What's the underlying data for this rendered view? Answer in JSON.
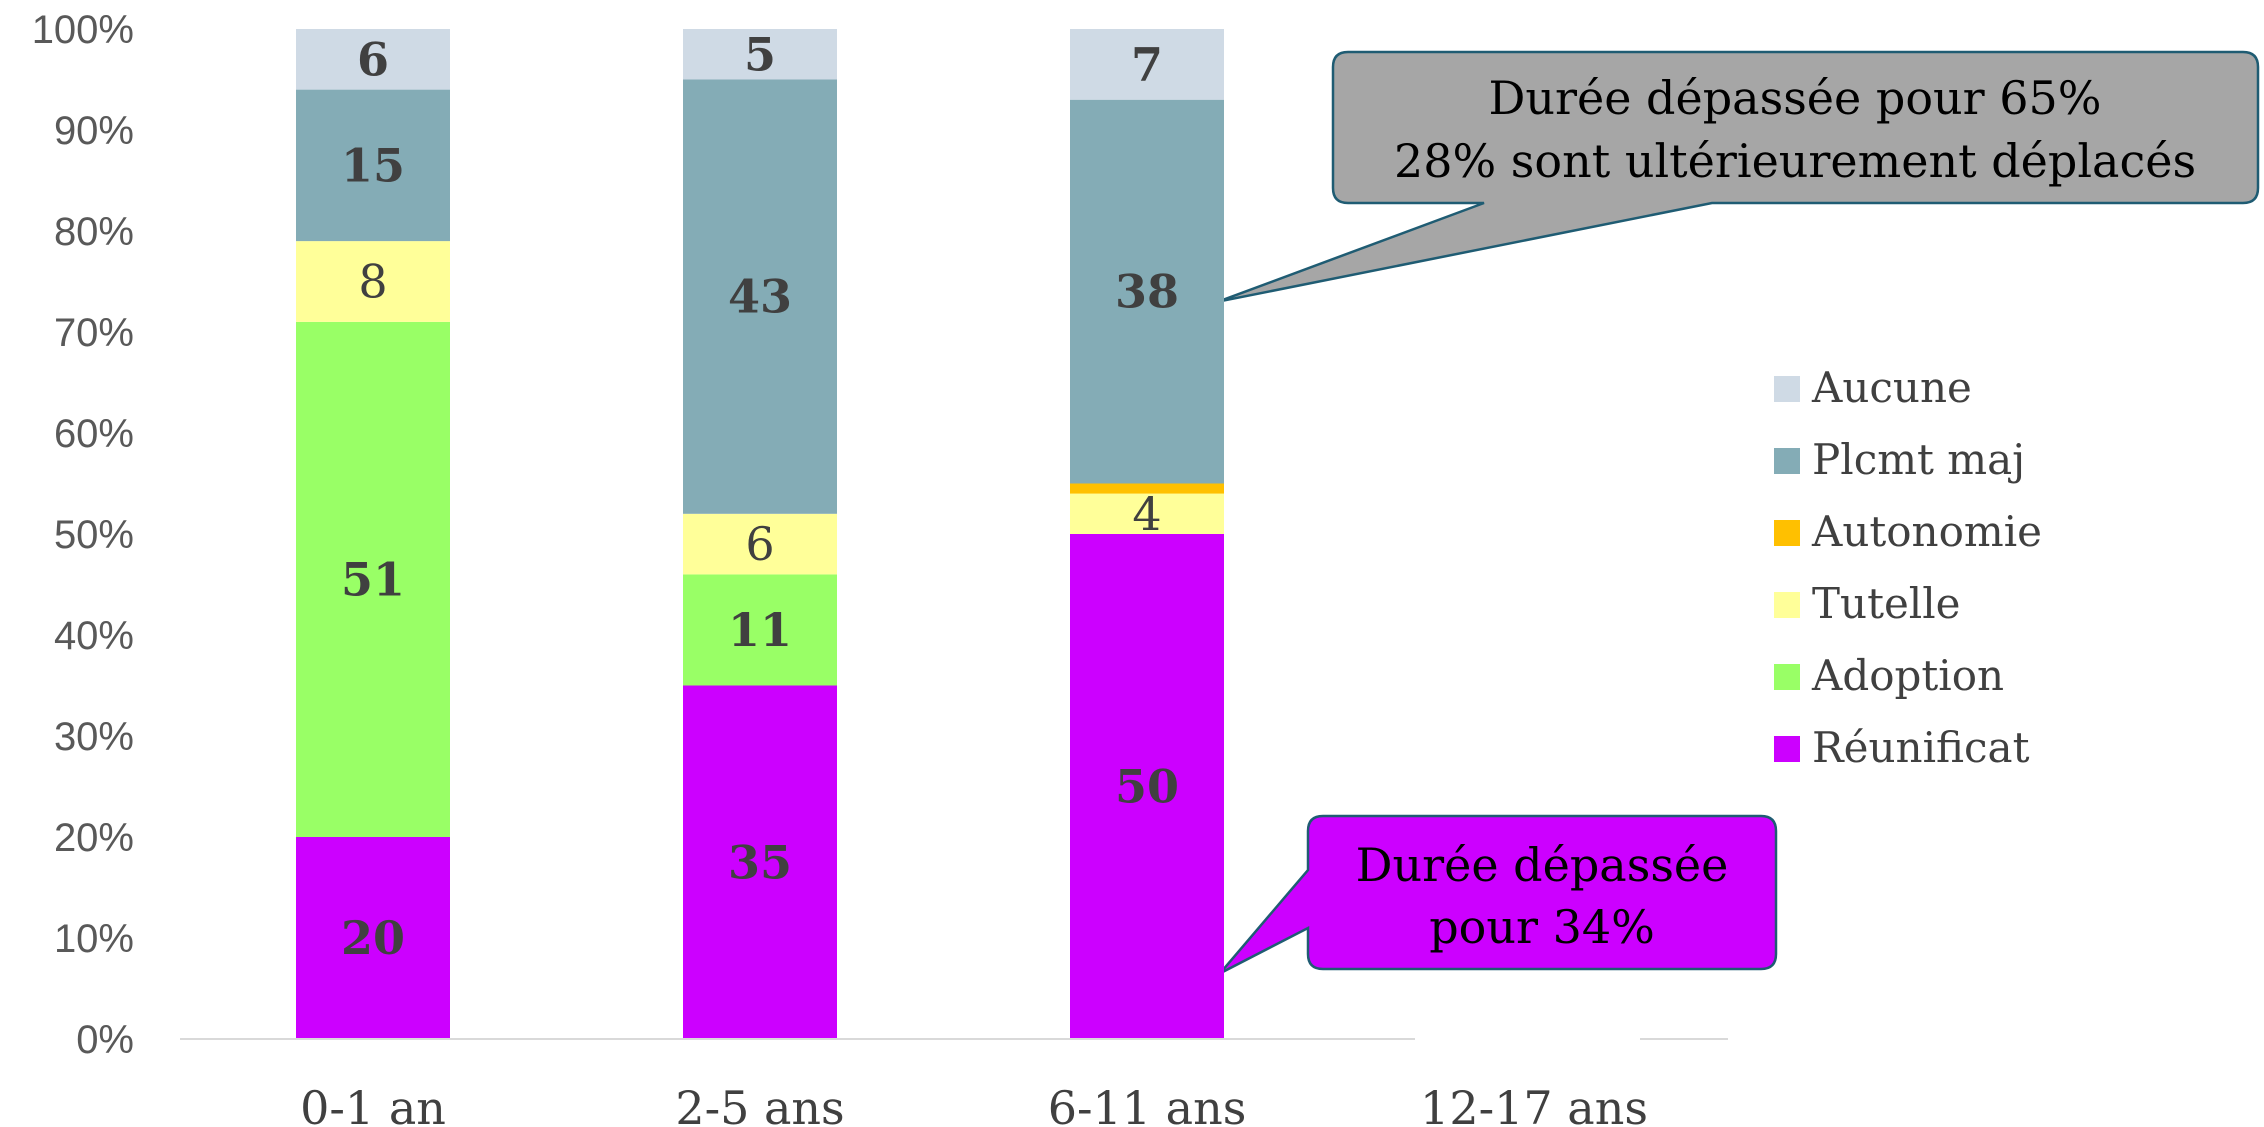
{
  "chart_data": {
    "type": "bar",
    "stacked": true,
    "categories": [
      "0-1 an",
      "2-5 ans",
      "6-11 ans",
      "12-17 ans"
    ],
    "ylim": [
      0,
      100
    ],
    "yticks": [
      "0%",
      "10%",
      "20%",
      "30%",
      "40%",
      "50%",
      "60%",
      "70%",
      "80%",
      "90%",
      "100%"
    ],
    "series": [
      {
        "name": "Réunification",
        "legend_label": "Réunificat",
        "color": "#cc00ff",
        "values": [
          20,
          35,
          50,
          null
        ],
        "labels": [
          "20",
          "35",
          "50",
          ""
        ]
      },
      {
        "name": "Adoption",
        "legend_label": "Adoption",
        "color": "#99ff66",
        "values": [
          51,
          11,
          0,
          null
        ],
        "labels": [
          "51",
          "11",
          "",
          ""
        ]
      },
      {
        "name": "Tutelle",
        "legend_label": "Tutelle",
        "color": "#ffff99",
        "values": [
          8,
          6,
          4,
          null
        ],
        "labels": [
          "8",
          "6",
          "4",
          ""
        ]
      },
      {
        "name": "Autonomie",
        "legend_label": "Autonomie",
        "color": "#ffc000",
        "values": [
          0,
          0,
          1,
          null
        ],
        "labels": [
          "",
          "",
          "",
          ""
        ]
      },
      {
        "name": "Plcmt majorité",
        "legend_label": "Plcmt maj",
        "color": "#84acb6",
        "values": [
          15,
          43,
          38,
          null
        ],
        "labels": [
          "15",
          "43",
          "38",
          ""
        ]
      },
      {
        "name": "Aucune",
        "legend_label": "Aucune",
        "color": "#cfdae5",
        "values": [
          6,
          5,
          7,
          null
        ],
        "labels": [
          "6",
          "5",
          "7",
          ""
        ]
      }
    ],
    "legend_position": "right",
    "grid": false,
    "annotations": [
      {
        "id": "gray",
        "lines": [
          "Durée dépassée pour 65%",
          "28% sont ultérieurement déplacés"
        ],
        "fill": "#a6a6a6",
        "stroke": "#1f5c73",
        "points_to": {
          "category": "6-11 ans",
          "value": 73
        }
      },
      {
        "id": "purple",
        "lines": [
          "Durée dépassée",
          "pour 34%"
        ],
        "fill": "#cc00ff",
        "stroke": "#1f5c73",
        "points_to": {
          "category": "6-11 ans",
          "value": 6.5
        }
      }
    ]
  }
}
